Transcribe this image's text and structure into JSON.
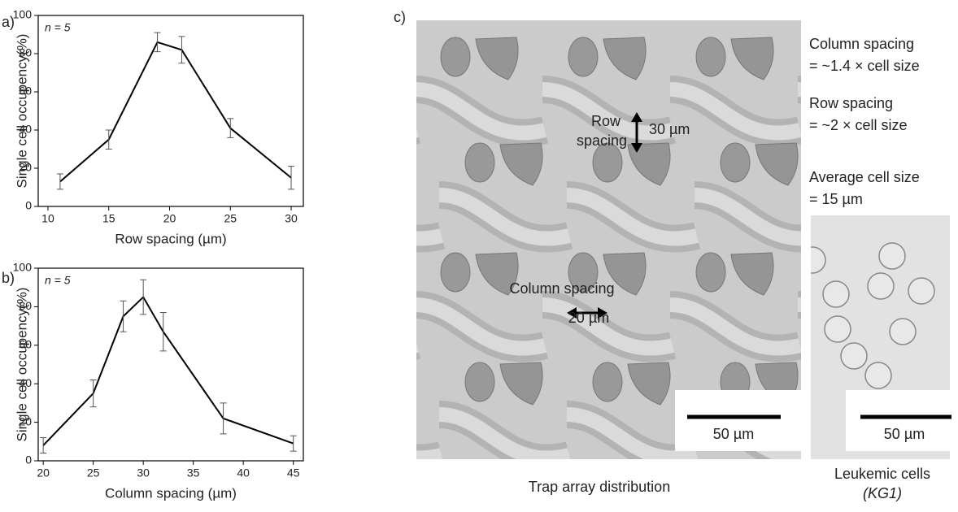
{
  "chart_data": [
    {
      "type": "line",
      "label": "a)",
      "annotation": "n = 5",
      "x_label": "Row spacing (µm)",
      "y_label": "Single cell occupency(%)",
      "x": [
        11,
        15,
        19,
        21,
        25,
        30
      ],
      "values": [
        13,
        35,
        86,
        82,
        41,
        15
      ],
      "errors": [
        4,
        5,
        5,
        7,
        5,
        6
      ],
      "color": "#000000",
      "xlim": [
        9.2,
        31
      ],
      "xticks": [
        10,
        15,
        20,
        25,
        30
      ],
      "ylim": [
        0,
        100
      ],
      "yticks": [
        0,
        20,
        40,
        60,
        80,
        100
      ]
    },
    {
      "type": "line",
      "label": "b)",
      "annotation": "n = 5",
      "x_label": "Column spacing (µm)",
      "y_label": "Single cell occupency(%)",
      "x": [
        20,
        25,
        28,
        30,
        32,
        38,
        45
      ],
      "values": [
        8,
        35,
        75,
        85,
        67,
        22,
        9
      ],
      "errors": [
        4,
        7,
        8,
        9,
        10,
        8,
        4
      ],
      "color": "#000000",
      "xlim": [
        19.5,
        46
      ],
      "xticks": [
        20,
        25,
        30,
        35,
        40,
        45
      ],
      "ylim": [
        0,
        100
      ],
      "yticks": [
        0,
        20,
        40,
        60,
        80,
        100
      ]
    }
  ],
  "panel_c": {
    "label": "c)",
    "row_label": [
      "Row",
      "spacing"
    ],
    "row_value": "30 µm",
    "column_label": "Column spacing",
    "column_value": "20 µm",
    "scale_bar": "50 µm",
    "notes": [
      "Column spacing",
      "= ~1.4 × cell size",
      "Row spacing",
      "= ~2 × cell size",
      "Average cell size",
      "= 15 µm"
    ],
    "trap_caption": "Trap array distribution",
    "cell_caption": "Leukemic cells",
    "cell_line": "(KG1)"
  }
}
